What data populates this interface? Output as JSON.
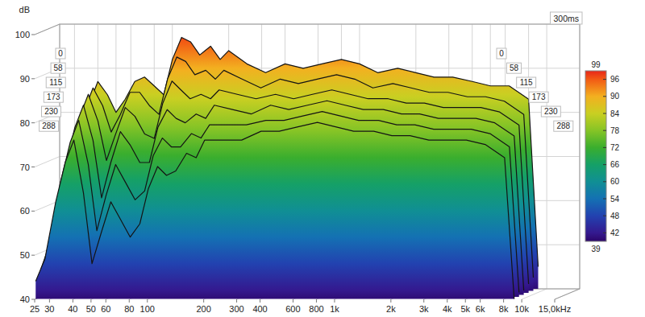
{
  "chart_data": {
    "type": "waterfall",
    "y_label": "dB",
    "annotation": "300ms",
    "log": "x",
    "grid": true,
    "xlim": [
      25,
      15000
    ],
    "xticks": [
      25,
      30,
      40,
      50,
      60,
      80,
      100,
      200,
      300,
      400,
      600,
      800,
      {
        "value": 1000,
        "label": "1k"
      },
      {
        "value": 2000,
        "label": "2k"
      },
      {
        "value": 3000,
        "label": "3k"
      },
      {
        "value": 4000,
        "label": "4k"
      },
      {
        "value": 5000,
        "label": "5k"
      },
      {
        "value": 6000,
        "label": "6k"
      },
      {
        "value": 8000,
        "label": "8k"
      },
      {
        "value": 10000,
        "label": "10k"
      },
      {
        "value": 15000,
        "label": "15,0kHz"
      }
    ],
    "ylim": [
      40,
      100
    ],
    "yticks": [
      40,
      50,
      60,
      70,
      80,
      90,
      100
    ],
    "zlim": [
      0,
      300
    ],
    "zticks": [
      0,
      58,
      115,
      173,
      230,
      288
    ],
    "colorbar": {
      "range": [
        39,
        99
      ],
      "ticks": [
        99,
        96,
        90,
        84,
        78,
        72,
        66,
        60,
        54,
        48,
        42,
        39
      ],
      "colors": [
        "#e8261a",
        "#f25a14",
        "#f3b020",
        "#c9cf22",
        "#86c426",
        "#3aae2e",
        "#15a067",
        "#108f94",
        "#1471b3",
        "#2242b0",
        "#34198f",
        "#2c0569"
      ]
    },
    "x": [
      25,
      28,
      32,
      36,
      40,
      45,
      50,
      56,
      63,
      71,
      80,
      90,
      100,
      112,
      125,
      140,
      160,
      180,
      200,
      250,
      315,
      400,
      500,
      630,
      800,
      1000,
      1250,
      1600,
      2000,
      2500,
      3150,
      4000,
      5000,
      6300,
      8000,
      9000
    ],
    "series": [
      {
        "time": 0,
        "values": [
          55,
          62,
          72,
          82,
          87,
          84,
          80,
          83,
          87,
          88,
          86,
          84,
          92,
          97,
          96,
          93,
          95,
          92,
          94,
          91,
          89,
          91,
          90,
          91,
          92,
          91,
          89,
          90,
          89,
          88,
          88,
          87,
          86,
          86,
          83,
          45
        ]
      },
      {
        "time": 58,
        "values": [
          52,
          60,
          72,
          81,
          86,
          82,
          76,
          80,
          85,
          85,
          82,
          80,
          88,
          93,
          92,
          89,
          90,
          88,
          90,
          88,
          86,
          88,
          87,
          88,
          89,
          88,
          86,
          87,
          86,
          85,
          85,
          84,
          84,
          83,
          80,
          43
        ]
      },
      {
        "time": 115,
        "values": [
          50,
          58,
          71,
          80,
          85,
          79,
          70,
          76,
          82,
          80,
          76,
          75,
          83,
          88,
          86,
          84,
          85,
          84,
          86,
          85,
          84,
          85,
          84,
          85,
          86,
          85,
          84,
          84,
          83,
          83,
          82,
          82,
          82,
          81,
          78,
          42
        ]
      },
      {
        "time": 173,
        "values": [
          48,
          55,
          69,
          78,
          83,
          75,
          62,
          70,
          77,
          74,
          70,
          70,
          78,
          82,
          80,
          79,
          81,
          80,
          83,
          82,
          81,
          83,
          82,
          83,
          84,
          83,
          82,
          82,
          81,
          81,
          80,
          80,
          80,
          79,
          76,
          41
        ]
      },
      {
        "time": 230,
        "values": [
          46,
          52,
          66,
          75,
          80,
          70,
          55,
          63,
          70,
          66,
          62,
          64,
          72,
          76,
          74,
          74,
          77,
          76,
          79,
          79,
          79,
          80,
          80,
          81,
          82,
          81,
          80,
          80,
          79,
          79,
          78,
          78,
          78,
          77,
          74,
          41
        ]
      },
      {
        "time": 288,
        "values": [
          44,
          49,
          62,
          71,
          76,
          64,
          48,
          55,
          62,
          58,
          54,
          57,
          65,
          70,
          68,
          69,
          73,
          72,
          76,
          76,
          76,
          78,
          78,
          79,
          80,
          79,
          78,
          78,
          77,
          77,
          76,
          76,
          76,
          75,
          72,
          40
        ]
      }
    ]
  }
}
